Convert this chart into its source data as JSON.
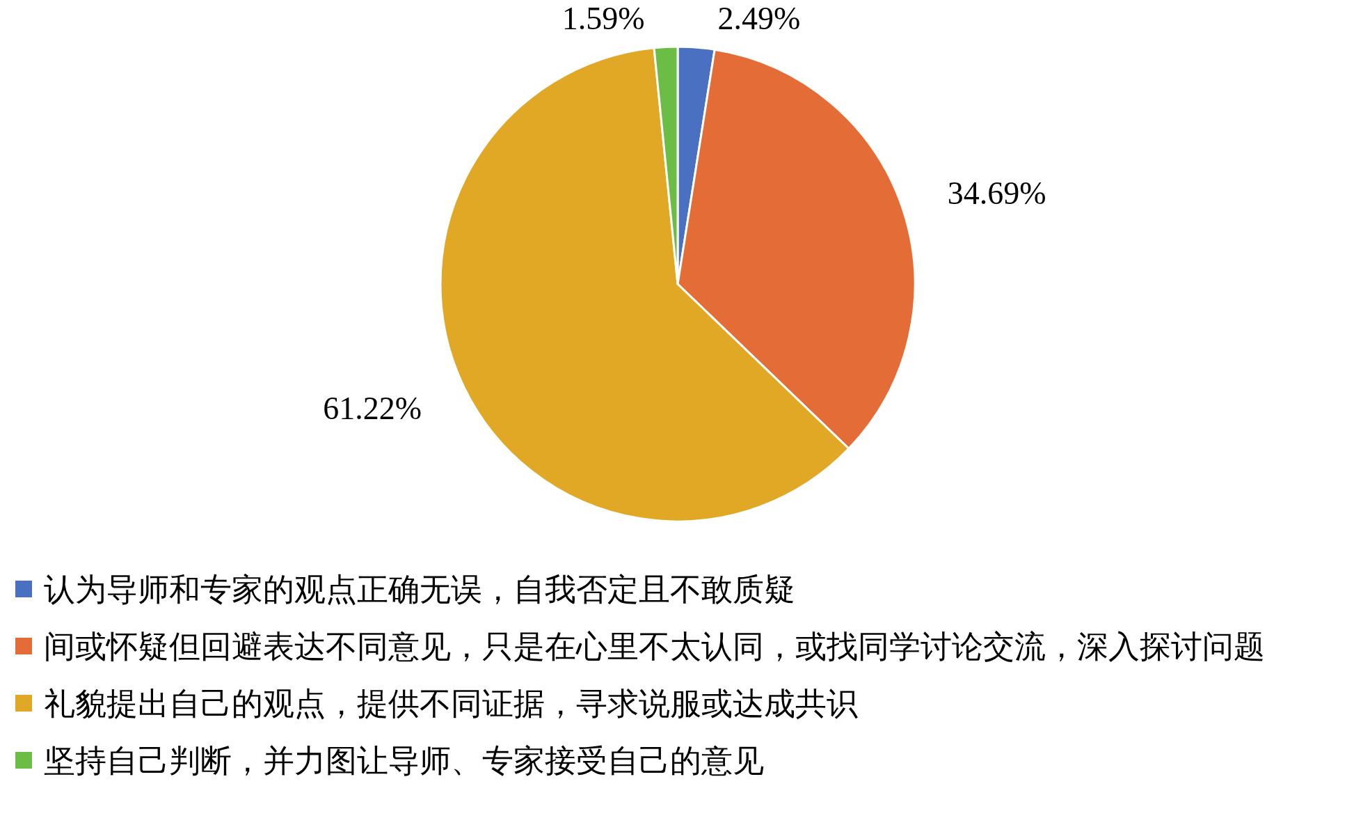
{
  "chart_data": {
    "type": "pie",
    "categories": [
      "认为导师和专家的观点正确无误，自我否定且不敢质疑",
      "间或怀疑但回避表达不同意见，只是在心里不太认同，或找同学讨论交流，深入探讨问题",
      "礼貌提出自己的观点，提供不同证据，寻求说服或达成共识",
      "坚持自己判断，并力图让导师、专家接受自己的意见"
    ],
    "values": [
      2.49,
      34.69,
      61.22,
      1.59
    ],
    "colors": [
      "#4a70c2",
      "#e46c36",
      "#e0a825",
      "#6cbd45"
    ],
    "value_labels": [
      "2.49%",
      "34.69%",
      "61.22%",
      "1.59%"
    ],
    "legend": "bottom"
  }
}
